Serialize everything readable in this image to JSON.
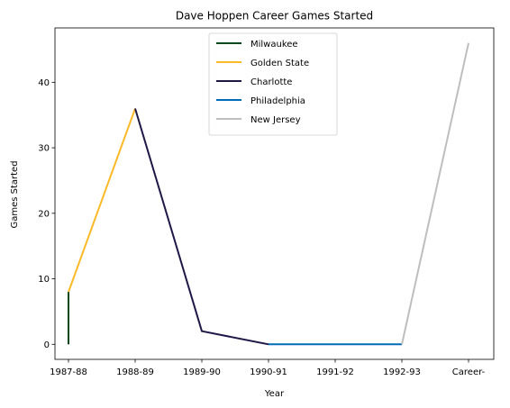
{
  "chart_data": {
    "type": "line",
    "title": "Dave Hoppen Career Games Started",
    "xlabel": "Year",
    "ylabel": "Games Started",
    "categories": [
      "1987-88",
      "1988-89",
      "1989-90",
      "1990-91",
      "1991-92",
      "1992-93",
      "Career-"
    ],
    "ylim": [
      -2.3,
      48.3
    ],
    "yticks": [
      0,
      10,
      20,
      30,
      40
    ],
    "grid": false,
    "legend_position": "upper center",
    "series": [
      {
        "name": "Milwaukee",
        "color": "#00471b",
        "points": [
          {
            "x": "1987-88",
            "y": 0
          },
          {
            "x": "1987-88",
            "y": 8
          }
        ]
      },
      {
        "name": "Golden State",
        "color": "#fdb927",
        "points": [
          {
            "x": "1987-88",
            "y": 8
          },
          {
            "x": "1988-89",
            "y": 36
          }
        ]
      },
      {
        "name": "Charlotte",
        "color": "#201747",
        "points": [
          {
            "x": "1988-89",
            "y": 36
          },
          {
            "x": "1989-90",
            "y": 2
          },
          {
            "x": "1990-91",
            "y": 0
          }
        ]
      },
      {
        "name": "Philadelphia",
        "color": "#006bb6",
        "points": [
          {
            "x": "1990-91",
            "y": 0
          },
          {
            "x": "1991-92",
            "y": 0
          },
          {
            "x": "1992-93",
            "y": 0
          }
        ]
      },
      {
        "name": "New Jersey",
        "color": "#bebebe",
        "points": [
          {
            "x": "1992-93",
            "y": 0
          },
          {
            "x": "Career-",
            "y": 46
          }
        ]
      }
    ]
  }
}
